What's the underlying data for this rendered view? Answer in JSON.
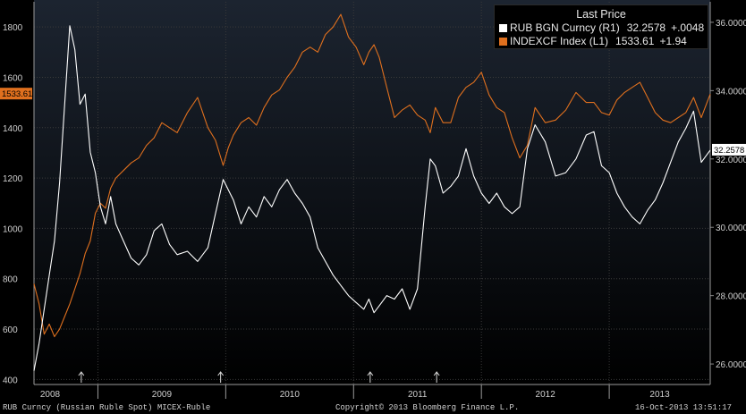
{
  "colors": {
    "rub": "#ffffff",
    "index": "#e0701e",
    "grid": "#3a3a3a",
    "axis_text": "#cfcfcf",
    "bg_top": "#1c2430",
    "bg_bottom": "#000000"
  },
  "legend": {
    "title": "Last Price",
    "rows": [
      {
        "label": "RUB BGN Curncy  (R1)",
        "value": "32.2578",
        "change": "+.0048",
        "color": "#ffffff"
      },
      {
        "label": "INDEXCF Index  (L1)",
        "value": "1533.61",
        "change": "+1.94",
        "color": "#e0701e"
      }
    ]
  },
  "tags": {
    "left": "1533.61",
    "right": "32.2578"
  },
  "footer": {
    "left": "RUB Curncy (Russian Ruble Spot) MICEX-Ruble",
    "center": "Copyright© 2013 Bloomberg Finance L.P.",
    "right": "16-Oct-2013 13:51:17"
  },
  "chart_data": {
    "type": "line",
    "title": "",
    "xlabel": "",
    "x_tick_labels": [
      "2008",
      "2009",
      "2010",
      "2011",
      "2012",
      "2013"
    ],
    "x_range": [
      2008.5,
      2013.79
    ],
    "left_axis": {
      "ticks": [
        400,
        600,
        800,
        1000,
        1200,
        1400,
        1600,
        1800
      ],
      "range": [
        380,
        1900
      ]
    },
    "right_axis": {
      "ticks": [
        "26.0000",
        "28.0000",
        "30.0000",
        "32.0000",
        "34.0000",
        "36.0000"
      ],
      "range": [
        25.4,
        36.6
      ]
    },
    "arrow_markers_x": [
      2008.87,
      2009.96,
      2011.13,
      2011.65
    ],
    "grid": true,
    "legend_position": "top-right",
    "series": [
      {
        "name": "RUB BGN Curncy  (R1)",
        "axis": "right",
        "color": "#ffffff",
        "x": [
          2008.5,
          2008.54,
          2008.58,
          2008.62,
          2008.66,
          2008.7,
          2008.74,
          2008.78,
          2008.82,
          2008.86,
          2008.9,
          2008.94,
          2008.98,
          2009.02,
          2009.06,
          2009.1,
          2009.14,
          2009.2,
          2009.26,
          2009.32,
          2009.38,
          2009.44,
          2009.5,
          2009.56,
          2009.62,
          2009.7,
          2009.78,
          2009.86,
          2009.92,
          2009.98,
          2010.02,
          2010.06,
          2010.12,
          2010.18,
          2010.24,
          2010.3,
          2010.36,
          2010.42,
          2010.48,
          2010.54,
          2010.6,
          2010.66,
          2010.72,
          2010.78,
          2010.84,
          2010.9,
          2010.96,
          2011.02,
          2011.08,
          2011.12,
          2011.16,
          2011.2,
          2011.26,
          2011.32,
          2011.38,
          2011.44,
          2011.5,
          2011.56,
          2011.6,
          2011.64,
          2011.7,
          2011.76,
          2011.82,
          2011.88,
          2011.94,
          2012.0,
          2012.06,
          2012.12,
          2012.18,
          2012.24,
          2012.3,
          2012.36,
          2012.42,
          2012.5,
          2012.58,
          2012.66,
          2012.74,
          2012.82,
          2012.88,
          2012.94,
          2013.0,
          2013.06,
          2013.12,
          2013.18,
          2013.24,
          2013.3,
          2013.36,
          2013.42,
          2013.48,
          2013.54,
          2013.6,
          2013.66,
          2013.72,
          2013.79
        ],
        "values": [
          25.8,
          26.6,
          27.6,
          28.6,
          29.6,
          31.3,
          33.6,
          35.9,
          35.2,
          33.6,
          33.9,
          32.2,
          31.6,
          30.6,
          30.1,
          30.9,
          30.1,
          29.6,
          29.1,
          28.9,
          29.2,
          29.9,
          30.1,
          29.5,
          29.2,
          29.3,
          29.0,
          29.4,
          30.4,
          31.4,
          31.1,
          30.8,
          30.1,
          30.6,
          30.3,
          30.9,
          30.6,
          31.1,
          31.4,
          31.0,
          30.7,
          30.3,
          29.4,
          29.0,
          28.6,
          28.3,
          28.0,
          27.8,
          27.6,
          27.9,
          27.5,
          27.7,
          28.0,
          27.9,
          28.2,
          27.6,
          28.2,
          30.6,
          32.0,
          31.8,
          31.0,
          31.2,
          31.5,
          32.3,
          31.5,
          31.0,
          30.7,
          31.0,
          30.6,
          30.4,
          30.6,
          32.3,
          33.0,
          32.5,
          31.5,
          31.6,
          32.0,
          32.7,
          32.8,
          31.8,
          31.6,
          31.0,
          30.6,
          30.3,
          30.1,
          30.5,
          30.8,
          31.3,
          31.9,
          32.5,
          32.9,
          33.4,
          31.9,
          32.26
        ]
      },
      {
        "name": "INDEXCF Index  (L1)",
        "axis": "left",
        "color": "#e0701e",
        "x": [
          2008.5,
          2008.54,
          2008.58,
          2008.62,
          2008.66,
          2008.7,
          2008.74,
          2008.78,
          2008.82,
          2008.86,
          2008.9,
          2008.94,
          2008.98,
          2009.02,
          2009.06,
          2009.1,
          2009.14,
          2009.2,
          2009.26,
          2009.32,
          2009.38,
          2009.44,
          2009.5,
          2009.56,
          2009.62,
          2009.7,
          2009.78,
          2009.86,
          2009.92,
          2009.98,
          2010.02,
          2010.06,
          2010.12,
          2010.18,
          2010.24,
          2010.3,
          2010.36,
          2010.42,
          2010.48,
          2010.54,
          2010.6,
          2010.66,
          2010.72,
          2010.78,
          2010.84,
          2010.9,
          2010.96,
          2011.02,
          2011.08,
          2011.12,
          2011.16,
          2011.2,
          2011.26,
          2011.32,
          2011.38,
          2011.44,
          2011.5,
          2011.56,
          2011.6,
          2011.64,
          2011.7,
          2011.76,
          2011.82,
          2011.88,
          2011.94,
          2012.0,
          2012.06,
          2012.12,
          2012.18,
          2012.24,
          2012.3,
          2012.36,
          2012.42,
          2012.5,
          2012.58,
          2012.66,
          2012.74,
          2012.82,
          2012.88,
          2012.94,
          2013.0,
          2013.06,
          2013.12,
          2013.18,
          2013.24,
          2013.3,
          2013.36,
          2013.42,
          2013.48,
          2013.54,
          2013.6,
          2013.66,
          2013.72,
          2013.79
        ],
        "values": [
          780,
          700,
          580,
          620,
          570,
          600,
          650,
          700,
          760,
          820,
          900,
          950,
          1060,
          1100,
          1080,
          1160,
          1200,
          1230,
          1260,
          1280,
          1330,
          1360,
          1420,
          1400,
          1380,
          1460,
          1520,
          1400,
          1350,
          1250,
          1320,
          1370,
          1420,
          1440,
          1410,
          1480,
          1530,
          1550,
          1600,
          1640,
          1700,
          1720,
          1700,
          1770,
          1800,
          1850,
          1760,
          1720,
          1650,
          1700,
          1730,
          1680,
          1560,
          1440,
          1470,
          1490,
          1450,
          1430,
          1380,
          1480,
          1420,
          1420,
          1520,
          1560,
          1580,
          1620,
          1530,
          1480,
          1460,
          1360,
          1280,
          1330,
          1480,
          1420,
          1430,
          1470,
          1540,
          1500,
          1500,
          1460,
          1450,
          1510,
          1540,
          1560,
          1580,
          1520,
          1460,
          1430,
          1420,
          1440,
          1460,
          1520,
          1440,
          1533.61
        ]
      }
    ]
  }
}
